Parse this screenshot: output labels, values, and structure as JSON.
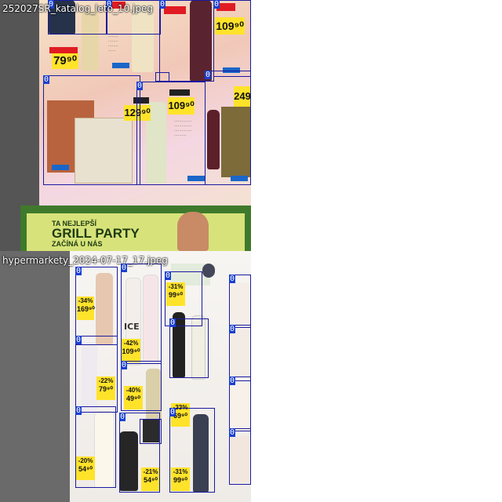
{
  "tiles": [
    {
      "file_name": "252027SR_katalog_leto_10.jpeg",
      "boxes": [
        {
          "label": "0"
        },
        {
          "label": "0"
        },
        {
          "label": "0"
        },
        {
          "label": "0"
        },
        {
          "label": "0"
        },
        {
          "label": "0"
        },
        {
          "label": "0"
        },
        {
          "label": "0"
        }
      ],
      "prices": [
        "79⁹⁰",
        "109⁹⁰",
        "129⁹⁰",
        "109⁹⁰",
        "249"
      ],
      "promo": {
        "line1": "TA NEJLEPŠÍ",
        "line2": "GRILL PARTY",
        "line3": "ZAČÍNÁ U NÁS"
      }
    },
    {
      "file_name": "hypermarkety_2024-07-17_17.jpeg",
      "boxes": [
        {
          "label": "0"
        },
        {
          "label": "0"
        },
        {
          "label": "0"
        },
        {
          "label": "0"
        },
        {
          "label": "0"
        },
        {
          "label": "0"
        },
        {
          "label": "0"
        },
        {
          "label": "0"
        },
        {
          "label": "0"
        },
        {
          "label": "0"
        },
        {
          "label": "0"
        },
        {
          "label": "0"
        },
        {
          "label": "0"
        },
        {
          "label": "0"
        }
      ],
      "discounts": [
        "-34%",
        "-42%",
        "-22%",
        "-40%",
        "-31%",
        "-33%",
        "-20%",
        "-21%",
        "-31%"
      ],
      "prices": [
        "169⁹⁰",
        "109⁹⁰",
        "79⁹⁰",
        "49⁹⁰",
        "99⁹⁰",
        "69⁹⁰",
        "54⁹⁰",
        "54⁹⁰",
        "99⁹⁰"
      ],
      "brand": "ICE"
    }
  ],
  "colors": {
    "box_border": "#1a1aa0",
    "label_bg": "#1a3fd1",
    "price_yellow": "#ffe32a",
    "promo_green": "#3f7a2c"
  }
}
